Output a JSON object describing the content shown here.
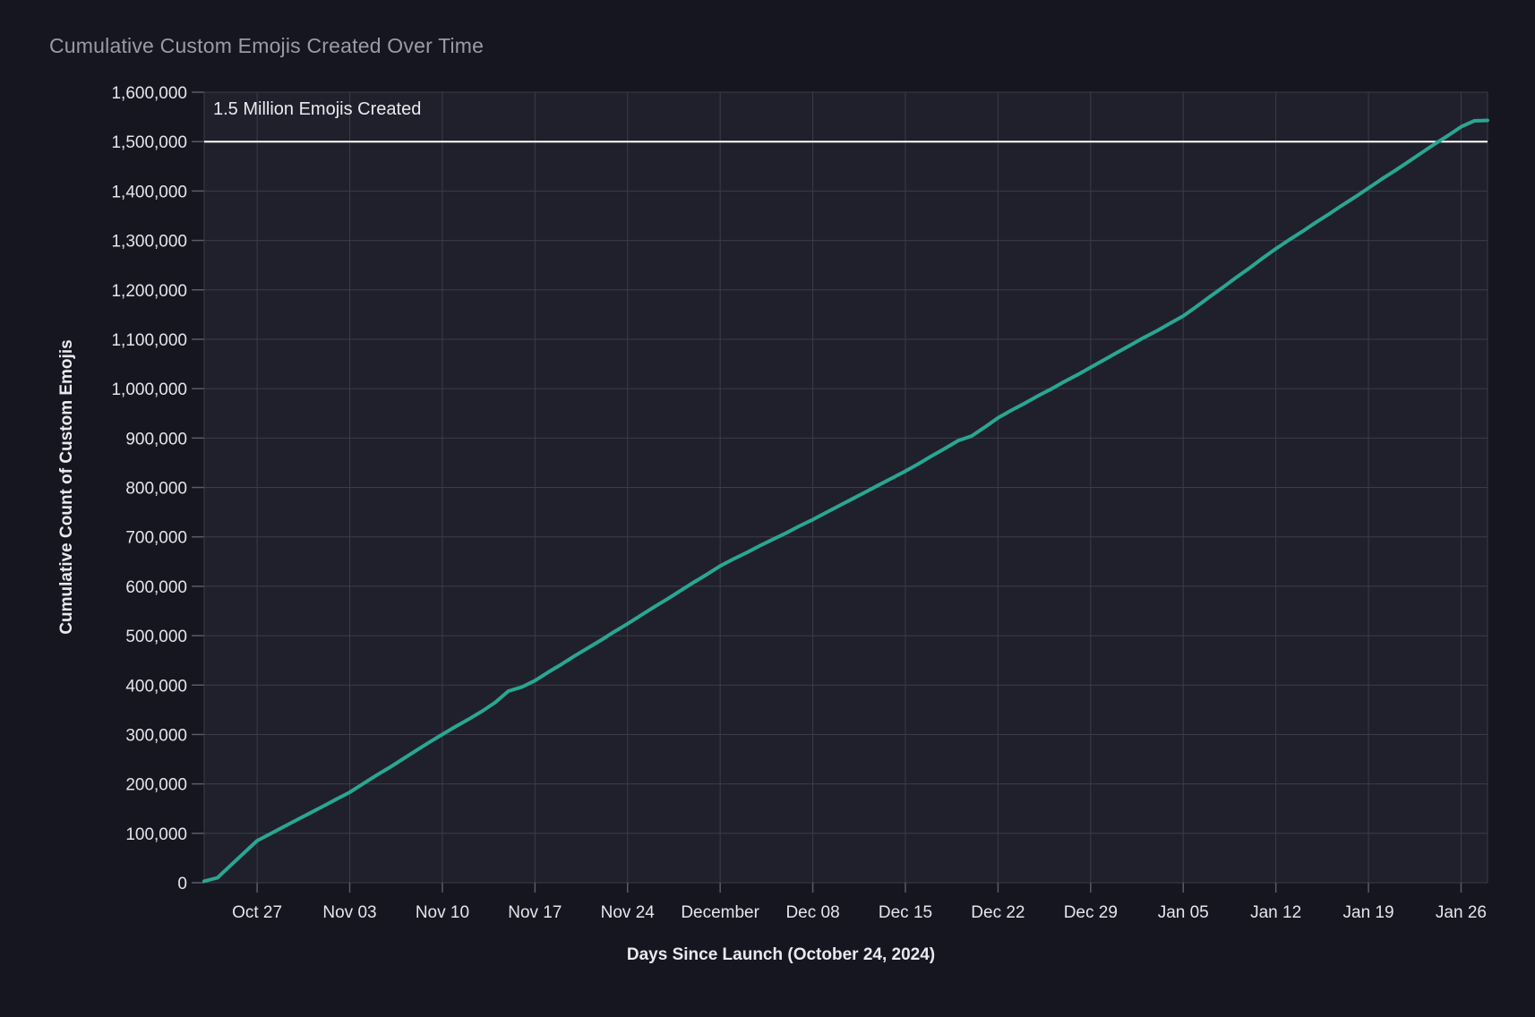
{
  "chart_data": {
    "type": "line",
    "title": "Cumulative Custom Emojis Created Over Time",
    "xlabel": "Days Since Launch (October 24, 2024)",
    "ylabel": "Cumulative Count of Custom Emojis",
    "grid": true,
    "legend": "none",
    "markers": false,
    "ylim": [
      0,
      1600000
    ],
    "x_domain": {
      "start_day": 0,
      "end_day": 97
    },
    "ref_line": {
      "value": 1500000,
      "label": "1.5 Million Emojis Created"
    },
    "y_ticks": [
      {
        "label": "0",
        "value": 0
      },
      {
        "label": "100,000",
        "value": 100000
      },
      {
        "label": "200,000",
        "value": 200000
      },
      {
        "label": "300,000",
        "value": 300000
      },
      {
        "label": "400,000",
        "value": 400000
      },
      {
        "label": "500,000",
        "value": 500000
      },
      {
        "label": "600,000",
        "value": 600000
      },
      {
        "label": "700,000",
        "value": 700000
      },
      {
        "label": "800,000",
        "value": 800000
      },
      {
        "label": "900,000",
        "value": 900000
      },
      {
        "label": "1,000,000",
        "value": 1000000
      },
      {
        "label": "1,100,000",
        "value": 1100000
      },
      {
        "label": "1,200,000",
        "value": 1200000
      },
      {
        "label": "1,300,000",
        "value": 1300000
      },
      {
        "label": "1,400,000",
        "value": 1400000
      },
      {
        "label": "1,500,000",
        "value": 1500000
      },
      {
        "label": "1,600,000",
        "value": 1600000
      }
    ],
    "x_ticks": [
      {
        "label": "Oct 27",
        "day": 4
      },
      {
        "label": "Nov 03",
        "day": 11
      },
      {
        "label": "Nov 10",
        "day": 18
      },
      {
        "label": "Nov 17",
        "day": 25
      },
      {
        "label": "Nov 24",
        "day": 32
      },
      {
        "label": "December",
        "day": 39
      },
      {
        "label": "Dec 08",
        "day": 46
      },
      {
        "label": "Dec 15",
        "day": 53
      },
      {
        "label": "Dec 22",
        "day": 60
      },
      {
        "label": "Dec 29",
        "day": 67
      },
      {
        "label": "Jan 05",
        "day": 74
      },
      {
        "label": "Jan 12",
        "day": 81
      },
      {
        "label": "Jan 19",
        "day": 88
      },
      {
        "label": "Jan 26",
        "day": 95
      }
    ],
    "series": [
      {
        "values": [
          3000,
          10000,
          35000,
          60000,
          85000,
          99000,
          113000,
          127000,
          141000,
          155000,
          169000,
          183000,
          200000,
          217000,
          233000,
          250000,
          267000,
          284000,
          300000,
          316000,
          331000,
          347000,
          365000,
          388000,
          396000,
          409000,
          426000,
          442000,
          459000,
          475000,
          491000,
          508000,
          524000,
          541000,
          558000,
          574000,
          591000,
          608000,
          624000,
          641000,
          655000,
          668000,
          682000,
          695000,
          708000,
          722000,
          735000,
          749000,
          763000,
          777000,
          791000,
          805000,
          819000,
          833000,
          848000,
          864000,
          879000,
          895000,
          904000,
          922000,
          941000,
          956000,
          970000,
          985000,
          999000,
          1014000,
          1028000,
          1043000,
          1058000,
          1073000,
          1088000,
          1103000,
          1117000,
          1132000,
          1147000,
          1166000,
          1186000,
          1205000,
          1225000,
          1244000,
          1264000,
          1283000,
          1301000,
          1318000,
          1336000,
          1353000,
          1371000,
          1388000,
          1406000,
          1424000,
          1441000,
          1459000,
          1477000,
          1495000,
          1512000,
          1530000,
          1542000,
          1543000
        ]
      }
    ],
    "colors": {
      "paper_bg": "#151620",
      "plot_bg": "#1f202b",
      "grid": "#3b3c4a",
      "tick": "#5a5b6a",
      "line": "#2aa692",
      "ref_line": "#ffffff",
      "title": "#9b9ba7",
      "tick_label": "#e5e6ea",
      "axis_title": "#e9eaee"
    }
  }
}
